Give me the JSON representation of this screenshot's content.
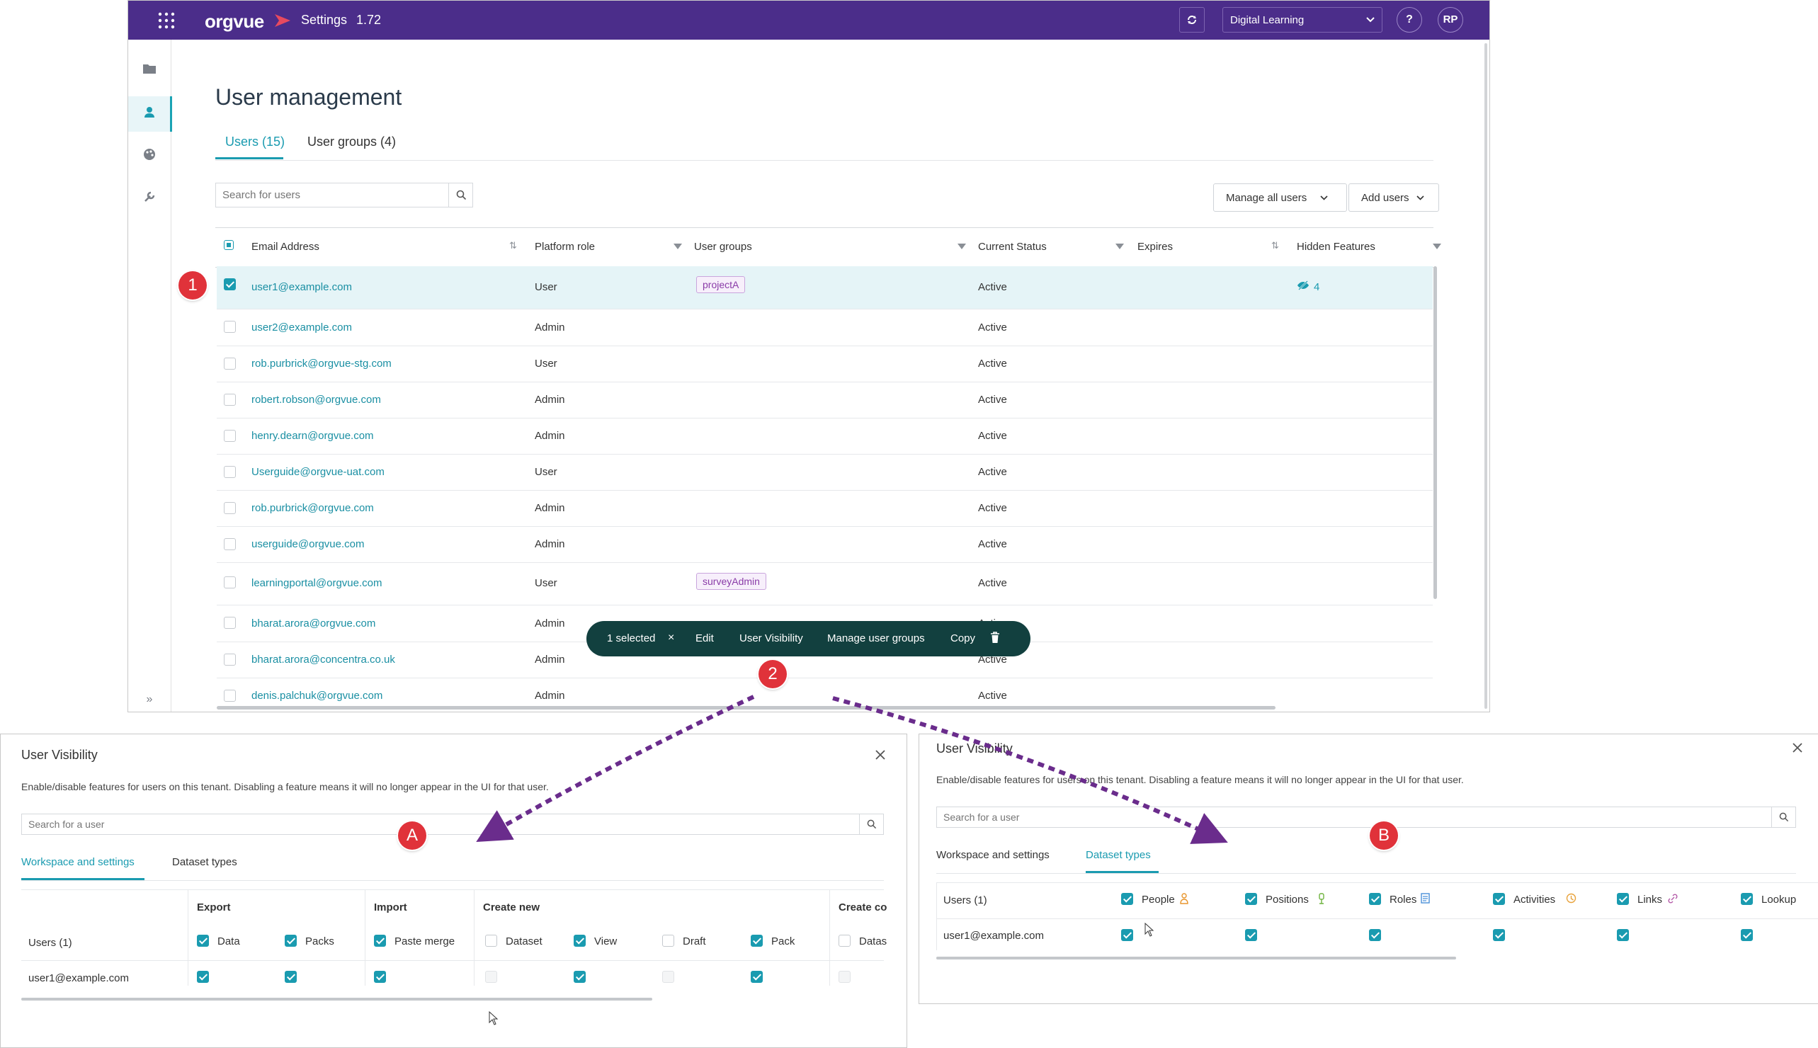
{
  "app": {
    "brand": "orgvue",
    "section": "Settings",
    "version": "1.72",
    "workspace": "Digital Learning",
    "help": "?",
    "avatar": "RP",
    "brand_color": "#4b2d8a",
    "accent_color": "#1a9bb0"
  },
  "page": {
    "title": "User management",
    "tabs": [
      {
        "label": "Users (15)",
        "active": true
      },
      {
        "label": "User groups (4)",
        "active": false
      }
    ],
    "search_placeholder": "Search for users",
    "manage_all_users": "Manage all users",
    "add_users": "Add users"
  },
  "table": {
    "columns": [
      "Email Address",
      "Platform role",
      "User groups",
      "Current Status",
      "Expires",
      "Hidden Features"
    ],
    "rows": [
      {
        "email": "user1@example.com",
        "role": "User",
        "group": "projectA",
        "status": "Active",
        "hidden": "4",
        "selected": true
      },
      {
        "email": "user2@example.com",
        "role": "Admin",
        "group": "",
        "status": "Active",
        "hidden": ""
      },
      {
        "email": "rob.purbrick@orgvue-stg.com",
        "role": "User",
        "group": "",
        "status": "Active",
        "hidden": ""
      },
      {
        "email": "robert.robson@orgvue.com",
        "role": "Admin",
        "group": "",
        "status": "Active",
        "hidden": ""
      },
      {
        "email": "henry.dearn@orgvue.com",
        "role": "Admin",
        "group": "",
        "status": "Active",
        "hidden": ""
      },
      {
        "email": "Userguide@orgvue-uat.com",
        "role": "User",
        "group": "",
        "status": "Active",
        "hidden": ""
      },
      {
        "email": "rob.purbrick@orgvue.com",
        "role": "Admin",
        "group": "",
        "status": "Active",
        "hidden": ""
      },
      {
        "email": "userguide@orgvue.com",
        "role": "Admin",
        "group": "",
        "status": "Active",
        "hidden": ""
      },
      {
        "email": "learningportal@orgvue.com",
        "role": "User",
        "group": "surveyAdmin",
        "status": "Active",
        "hidden": ""
      },
      {
        "email": "bharat.arora@orgvue.com",
        "role": "Admin",
        "group": "",
        "status": "Active",
        "hidden": ""
      },
      {
        "email": "bharat.arora@concentra.co.uk",
        "role": "Admin",
        "group": "",
        "status": "Active",
        "hidden": ""
      },
      {
        "email": "denis.palchuk@orgvue.com",
        "role": "Admin",
        "group": "",
        "status": "Active",
        "hidden": ""
      }
    ]
  },
  "action_bar": {
    "selected": "1 selected",
    "clear": "×",
    "edit": "Edit",
    "user_visibility": "User Visibility",
    "manage_groups": "Manage user groups",
    "copy": "Copy"
  },
  "markers": {
    "one": "1",
    "two": "2",
    "a": "A",
    "b": "B"
  },
  "dialog_a": {
    "title": "User Visibility",
    "desc": "Enable/disable features for users on this tenant. Disabling a feature means it will no longer appear in the UI for that user.",
    "search_placeholder": "Search for a user",
    "tabs": [
      "Workspace and settings",
      "Dataset types"
    ],
    "users_header": "Users (1)",
    "groups": [
      "Export",
      "Import",
      "Create new",
      "Create co"
    ],
    "features": [
      "Data",
      "Packs",
      "Paste merge",
      "Dataset",
      "View",
      "Draft",
      "Pack",
      "Datas"
    ],
    "user": "user1@example.com"
  },
  "dialog_b": {
    "title": "User Visibility",
    "desc": "Enable/disable features for users on this tenant. Disabling a feature means it will no longer appear in the UI for that user.",
    "search_placeholder": "Search for a user",
    "tabs": [
      "Workspace and settings",
      "Dataset types"
    ],
    "users_header": "Users (1)",
    "types": [
      "People",
      "Positions",
      "Roles",
      "Activities",
      "Links",
      "Lookup"
    ],
    "type_colors": [
      "#e8962e",
      "#6fb33f",
      "#4a90d9",
      "#e8a23a",
      "#b45aa8",
      "#888888"
    ],
    "user": "user1@example.com"
  }
}
